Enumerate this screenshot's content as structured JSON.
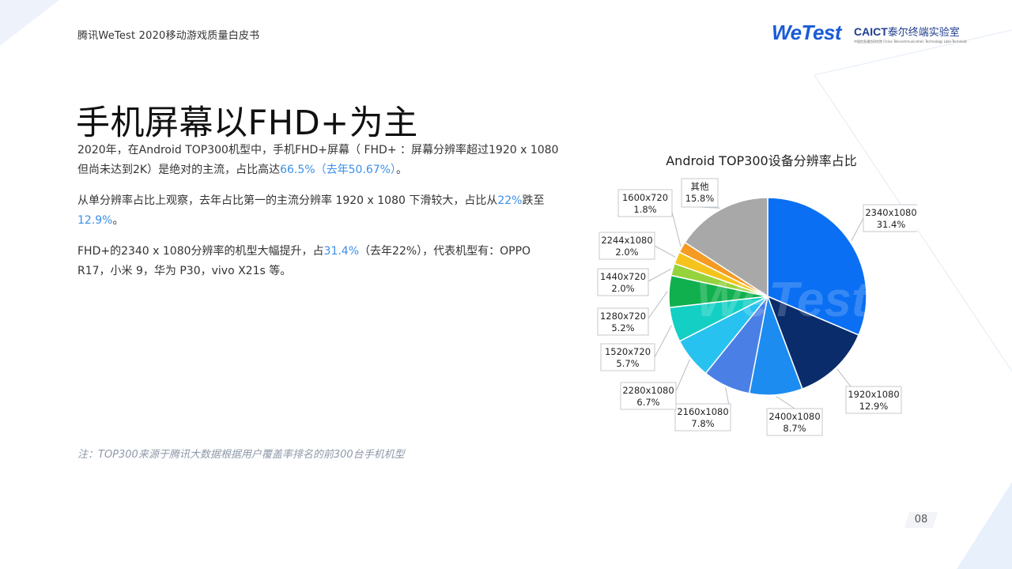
{
  "header": {
    "doc_title": "腾讯WeTest  2020移动游戏质量白皮书",
    "logo_wetest": "WeTest",
    "logo_caict_bold": "CAICT",
    "logo_caict_cn": "泰尔终端实验室",
    "logo_caict_sub": "中国信息通信研究院 China Telecommunication Technology Labs-Terminals"
  },
  "page_title": "手机屏幕以FHD+为主",
  "body": {
    "p1_a": "2020年，在Android TOP300机型中，手机FHD+屏幕（  FHD+ ：屏幕分辨率超过1920 x 1080 但尚未达到2K）是绝对的主流，占比高达",
    "p1_hl": "66.5%（去年50.67%）",
    "p1_end": "。",
    "p2_a": "从单分辨率占比上观察，去年占比第一的主流分辨率 1920 x 1080 下滑较大，占比从",
    "p2_hl1": "22%",
    "p2_b": "跌至",
    "p2_hl2": "12.9%",
    "p2_end": "。",
    "p3_a": "FHD+的2340 x 1080分辨率的机型大幅提升，占",
    "p3_hl": "31.4%",
    "p3_b": "（去年22%），代表机型有：OPPO R17，小米 9，华为 P30，vivo X21s 等。"
  },
  "footnote": "注：TOP300来源于腾讯大数据根据用户覆盖率排名的前300台手机机型",
  "page_number": "08",
  "chart_data": {
    "type": "pie",
    "title": "Android TOP300设备分辨率占比",
    "watermark": "WeTest",
    "slices": [
      {
        "label": "2340x1080",
        "value": 31.4,
        "display": "31.4%",
        "color": "#0a6ff2"
      },
      {
        "label": "1920x1080",
        "value": 12.9,
        "display": "12.9%",
        "color": "#0b2c6b"
      },
      {
        "label": "2400x1080",
        "value": 8.7,
        "display": "8.7%",
        "color": "#1c8cf0"
      },
      {
        "label": "2160x1080",
        "value": 7.8,
        "display": "7.8%",
        "color": "#4a7fe6"
      },
      {
        "label": "2280x1080",
        "value": 6.7,
        "display": "6.7%",
        "color": "#27c2f0"
      },
      {
        "label": "1520x720",
        "value": 5.7,
        "display": "5.7%",
        "color": "#14cfc4"
      },
      {
        "label": "1280x720",
        "value": 5.2,
        "display": "5.2%",
        "color": "#10b04e"
      },
      {
        "label": "1440x720",
        "value": 2.0,
        "display": "2.0%",
        "color": "#96d23c"
      },
      {
        "label": "2244x1080",
        "value": 2.0,
        "display": "2.0%",
        "color": "#f5c31b"
      },
      {
        "label": "1600x720",
        "value": 1.8,
        "display": "1.8%",
        "color": "#f59a23"
      },
      {
        "label": "其他",
        "value": 15.8,
        "display": "15.8%",
        "color": "#a8a8a8"
      }
    ]
  }
}
